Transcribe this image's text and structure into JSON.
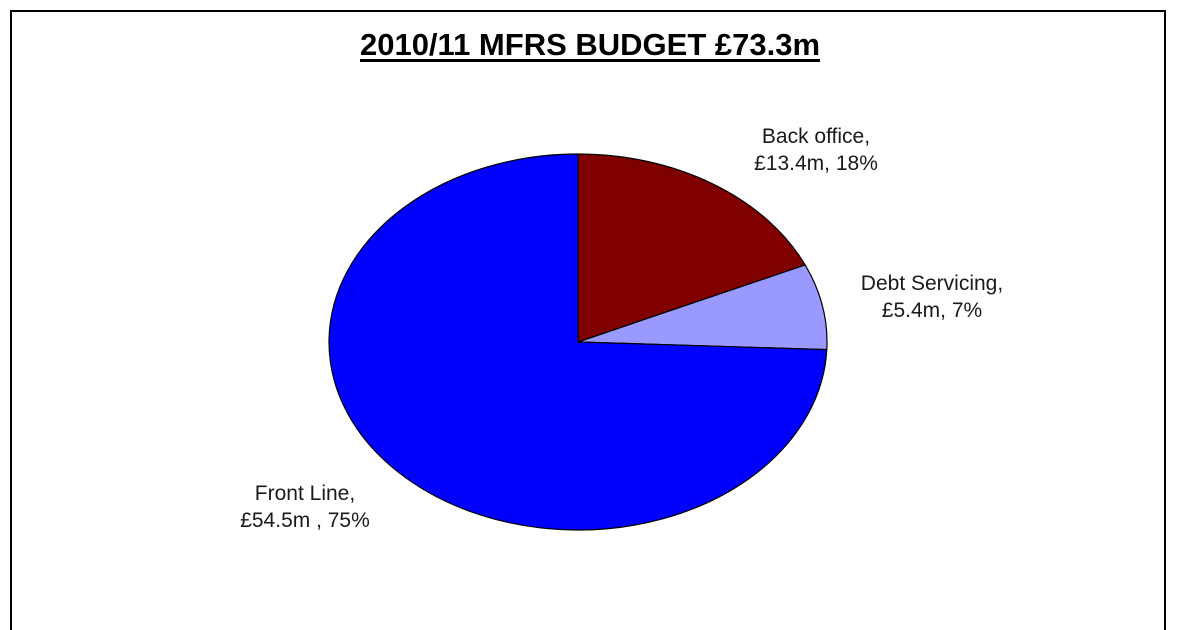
{
  "chart_data": {
    "type": "pie",
    "title": "2010/11 MFRS BUDGET £73.3m",
    "unit": "£m",
    "slices": [
      {
        "name": "Back office",
        "value": 13.4,
        "percent": 18,
        "color": "#800000",
        "label_line1": "Back office,",
        "label_line2": "£13.4m, 18%"
      },
      {
        "name": "Debt Servicing",
        "value": 5.4,
        "percent": 7,
        "color": "#9999ff",
        "label_line1": "Debt Servicing,",
        "label_line2": "£5.4m, 7%"
      },
      {
        "name": "Front Line",
        "value": 54.5,
        "percent": 75,
        "color": "#0000ff",
        "label_line1": "Front Line,",
        "label_line2": "£54.5m , 75%"
      }
    ],
    "legend": "none"
  }
}
